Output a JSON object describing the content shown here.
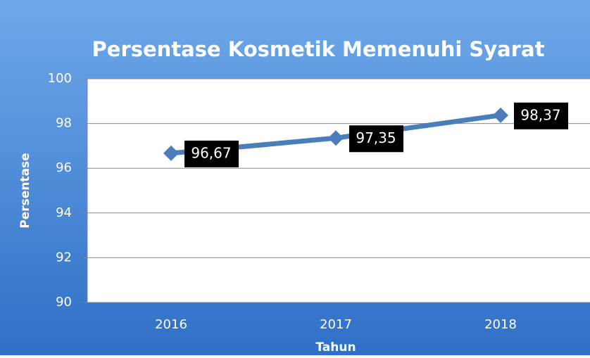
{
  "chart_data": {
    "type": "line",
    "title": "Persentase Kosmetik Memenuhi Syarat",
    "categories": [
      "2016",
      "2017",
      "2018"
    ],
    "values": [
      96.67,
      97.35,
      98.37
    ],
    "value_labels": [
      "96,67",
      "97,35",
      "98,37"
    ],
    "color": "#4a7ebb",
    "xlabel": "Tahun",
    "ylabel": "Persentase",
    "ylim": [
      90,
      100
    ],
    "yticks": [
      90,
      92,
      94,
      96,
      98,
      100
    ],
    "grid": true
  }
}
